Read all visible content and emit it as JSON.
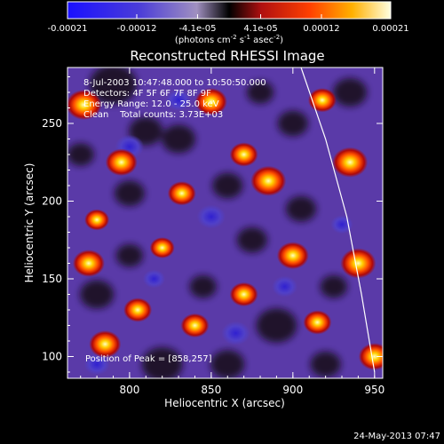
{
  "chart_data": {
    "type": "heatmap",
    "title": "Reconstructed RHESSI Image",
    "xlabel": "Heliocentric X (arcsec)",
    "ylabel": "Heliocentric Y (arcsec)",
    "xlim": [
      762,
      955
    ],
    "ylim": [
      86,
      286
    ],
    "xticks": [
      800,
      850,
      900,
      950
    ],
    "yticks": [
      100,
      150,
      200,
      250
    ],
    "colorbar": {
      "range": [
        -0.00021,
        0.00021
      ],
      "ticks": [
        "-0.00021",
        "-0.00012",
        "-4.1e-05",
        "4.1e-05",
        "0.00012",
        "0.00021"
      ],
      "tick_values": [
        -0.00021,
        -0.00012,
        -4.1e-05,
        4.1e-05,
        0.00012,
        0.00021
      ],
      "unit_base": "(photons cm",
      "unit_exp1": "-2",
      "unit_mid": " s",
      "unit_exp2": "-1",
      "unit_mid2": " asec",
      "unit_exp3": "-2",
      "unit_end": ")"
    },
    "annotations": {
      "time_range": "8-Jul-2003 10:47:48.000 to 10:50:50.000",
      "detectors": "Detectors: 4F 5F 6F 7F 8F 9F",
      "energy": "Energy Range: 12.0 - 25.0 keV",
      "clean": "Clean    Total counts: 3.73E+03",
      "peak": "Position of Peak = [858,257]"
    },
    "limb_curve": [
      [
        905,
        286
      ],
      [
        920,
        240
      ],
      [
        933,
        190
      ],
      [
        942,
        140
      ],
      [
        950,
        90
      ]
    ],
    "bright_blobs": [
      {
        "x": 772,
        "y": 262,
        "r": 10
      },
      {
        "x": 775,
        "y": 160,
        "r": 9
      },
      {
        "x": 785,
        "y": 108,
        "r": 9
      },
      {
        "x": 795,
        "y": 225,
        "r": 9
      },
      {
        "x": 850,
        "y": 264,
        "r": 9
      },
      {
        "x": 832,
        "y": 205,
        "r": 8
      },
      {
        "x": 870,
        "y": 230,
        "r": 8
      },
      {
        "x": 885,
        "y": 213,
        "r": 10
      },
      {
        "x": 900,
        "y": 165,
        "r": 9
      },
      {
        "x": 940,
        "y": 160,
        "r": 10
      },
      {
        "x": 935,
        "y": 225,
        "r": 10
      },
      {
        "x": 950,
        "y": 100,
        "r": 9
      },
      {
        "x": 840,
        "y": 120,
        "r": 8
      },
      {
        "x": 805,
        "y": 130,
        "r": 8
      },
      {
        "x": 915,
        "y": 122,
        "r": 8
      },
      {
        "x": 780,
        "y": 188,
        "r": 7
      },
      {
        "x": 870,
        "y": 140,
        "r": 8
      },
      {
        "x": 820,
        "y": 170,
        "r": 7
      },
      {
        "x": 918,
        "y": 265,
        "r": 8
      }
    ]
  },
  "footer": {
    "date": "24-May-2013 07:47"
  }
}
